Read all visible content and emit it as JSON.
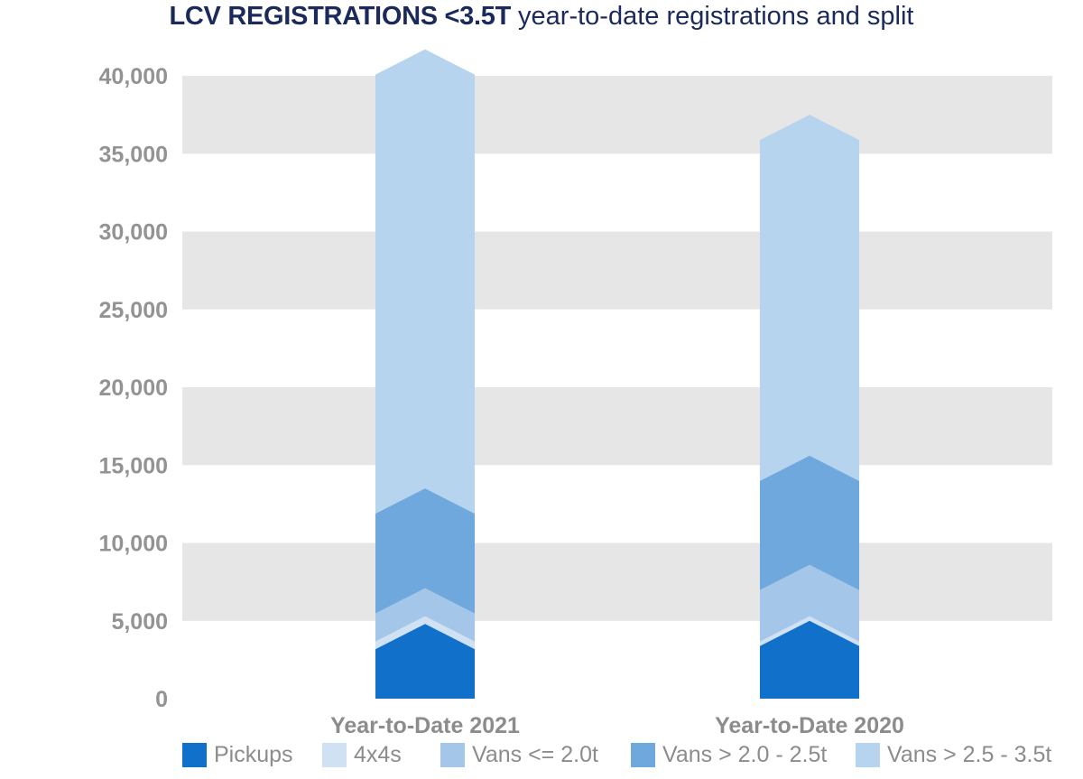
{
  "title": {
    "bold": "LCV REGISTRATIONS <3.5T",
    "light": "year-to-date registrations and split"
  },
  "colors": {
    "band": "#e6e6e6",
    "axis_text": "#939393",
    "category_text": "#8c8c8c",
    "title": "#1b2a5b"
  },
  "chart_data": {
    "type": "bar",
    "stacked": true,
    "orientation": "vertical",
    "categories": [
      "Year-to-Date 2021",
      "Year-to-Date 2020"
    ],
    "series": [
      {
        "name": "Pickups",
        "color": "#1170c9",
        "values": [
          4800,
          5000
        ]
      },
      {
        "name": "4x4s",
        "color": "#cfe1f2",
        "values": [
          500,
          300
        ]
      },
      {
        "name": "Vans <= 2.0t",
        "color": "#a4c7e9",
        "values": [
          1800,
          3300
        ]
      },
      {
        "name": "Vans > 2.0 - 2.5t",
        "color": "#6fa8dc",
        "values": [
          6400,
          7000
        ]
      },
      {
        "name": "Vans > 2.5 - 3.5t",
        "color": "#b7d4ee",
        "values": [
          28200,
          21900
        ]
      }
    ],
    "totals": [
      41700,
      37500
    ],
    "yticks": [
      0,
      5000,
      10000,
      15000,
      20000,
      25000,
      30000,
      35000,
      40000
    ],
    "ytick_labels": [
      "0",
      "5,000",
      "10,000",
      "15,000",
      "20,000",
      "25,000",
      "30,000",
      "35,000",
      "40,000"
    ],
    "ylim": [
      0,
      40000
    ],
    "grid": "alternating horizontal bands",
    "legend_position": "bottom"
  }
}
